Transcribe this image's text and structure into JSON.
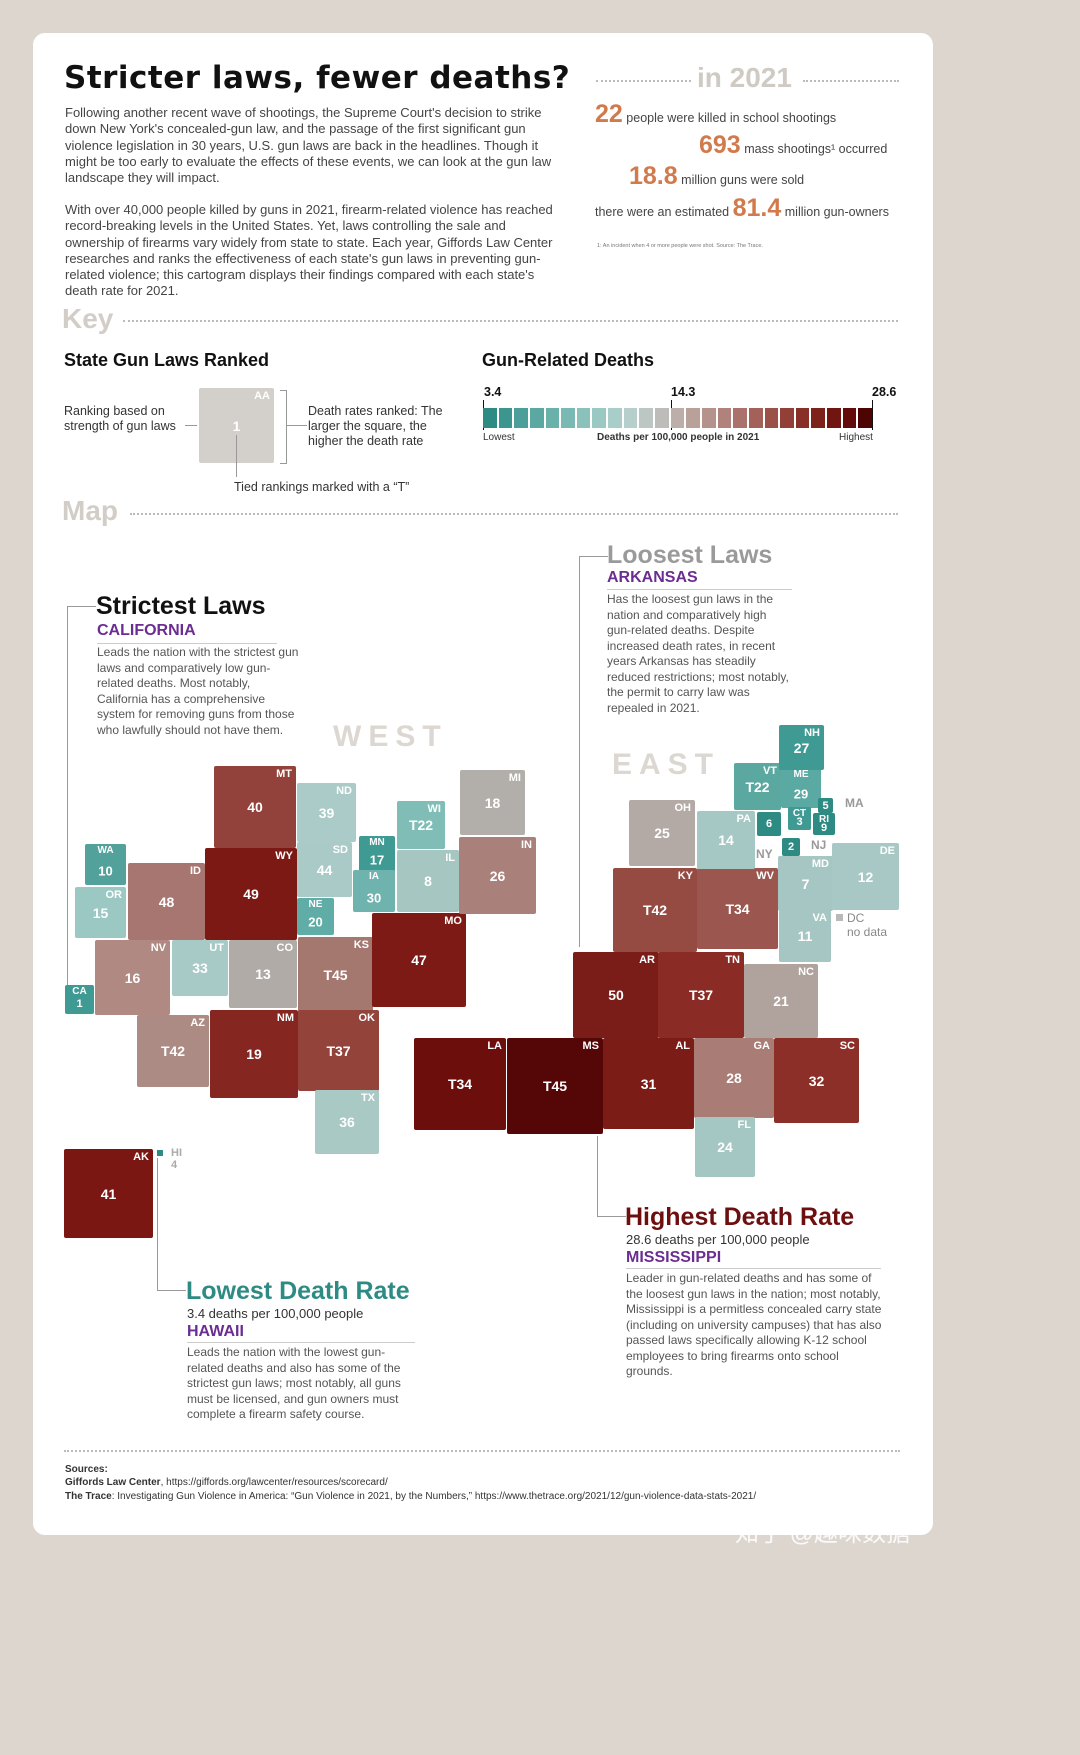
{
  "title": "Stricter laws, fewer deaths?",
  "intro_p1": "Following another recent wave of shootings, the Supreme Court's decision to strike down New York's concealed-gun law, and the passage of the first significant gun violence legislation in 30 years, U.S. gun laws are back in the headlines. Though it might be too early to evaluate the effects of these events, we can look at the gun law landscape they will impact.",
  "intro_p2": "With over 40,000 people killed by guns in 2021, firearm-related violence has reached record-breaking levels in the United States. Yet, laws controlling the sale and ownership of firearms vary widely from state to state. Each year, Giffords Law Center researches and ranks the effectiveness of each state's gun laws in preventing gun-related violence; this cartogram displays their findings compared with each state's death rate for 2021.",
  "stats": {
    "heading": "in 2021",
    "s1_num": "22",
    "s1_text": "people were killed in school shootings",
    "s2_num": "693",
    "s2_text": "mass shootings¹ occurred",
    "s3_num": "18.8",
    "s3_text": "million guns were sold",
    "s4_pre": "there were an estimated",
    "s4_num": "81.4",
    "s4_text": "million gun-owners",
    "footnote": "1: An incident when 4 or more people were shot.  Source: The Trace."
  },
  "key": {
    "section": "Key",
    "laws_title": "State Gun Laws Ranked",
    "deaths_title": "Gun-Related Deaths",
    "left_label": "Ranking based on strength of gun laws",
    "right_label": "Death rates ranked: The larger the square, the higher the death rate",
    "bottom_label": "Tied rankings marked with a “T”",
    "sample_abbr": "AA",
    "sample_rank": "1",
    "scale_min": "3.4",
    "scale_mid": "14.3",
    "scale_max": "28.6",
    "scale_low": "Lowest",
    "scale_caption": "Deaths per 100,000 people in 2021",
    "scale_high": "Highest",
    "scale_colors": [
      "#2e8b84",
      "#3c958e",
      "#4b9f98",
      "#5aa8a1",
      "#6ab1aa",
      "#7ab9b3",
      "#8ac1bb",
      "#9ac8c3",
      "#a9cdc9",
      "#b6cfcc",
      "#bcc6c3",
      "#bdbcb8",
      "#bcaea8",
      "#b9a19a",
      "#b5928b",
      "#b0827b",
      "#aa726b",
      "#a3615a",
      "#9b5048",
      "#923f37",
      "#883027",
      "#7d221a",
      "#711510",
      "#620b08",
      "#4f0404"
    ]
  },
  "map": {
    "section": "Map",
    "west": "WEST",
    "east": "EAST",
    "ma_label": "MA",
    "ny_label": "NY",
    "nj_label": "NJ",
    "dc_label": "DC",
    "dc_note": "no data",
    "hi_abbr": "HI",
    "hi_rank": "4",
    "tiles": [
      {
        "ab": "WA",
        "rk": "10",
        "c": "#52a29b"
      },
      {
        "ab": "OR",
        "rk": "15",
        "c": "#9cc8c3"
      },
      {
        "ab": "CA",
        "rk": "1",
        "c": "#3f9a93"
      },
      {
        "ab": "ID",
        "rk": "48",
        "c": "#a87670"
      },
      {
        "ab": "NV",
        "rk": "16",
        "c": "#af8982"
      },
      {
        "ab": "MT",
        "rk": "40",
        "c": "#92423a"
      },
      {
        "ab": "WY",
        "rk": "49",
        "c": "#7d1915"
      },
      {
        "ab": "UT",
        "rk": "33",
        "c": "#a8cac6"
      },
      {
        "ab": "CO",
        "rk": "13",
        "c": "#b0aba6"
      },
      {
        "ab": "AZ",
        "rk": "T42",
        "c": "#ab8b84"
      },
      {
        "ab": "NM",
        "rk": "19",
        "c": "#862620"
      },
      {
        "ab": "ND",
        "rk": "39",
        "c": "#aacbc7"
      },
      {
        "ab": "SD",
        "rk": "44",
        "c": "#a9cac6"
      },
      {
        "ab": "NE",
        "rk": "20",
        "c": "#5fada6"
      },
      {
        "ab": "KS",
        "rk": "T45",
        "c": "#a4776f"
      },
      {
        "ab": "OK",
        "rk": "T37",
        "c": "#94433b"
      },
      {
        "ab": "TX",
        "rk": "36",
        "c": "#a9c9c5"
      },
      {
        "ab": "MN",
        "rk": "17",
        "c": "#3f9a93"
      },
      {
        "ab": "IA",
        "rk": "30",
        "c": "#6eb3ad"
      },
      {
        "ab": "MO",
        "rk": "47",
        "c": "#7d1a15"
      },
      {
        "ab": "WI",
        "rk": "T22",
        "c": "#7fbdb6"
      },
      {
        "ab": "IL",
        "rk": "8",
        "c": "#a6c6c2"
      },
      {
        "ab": "MI",
        "rk": "18",
        "c": "#b2aeaa"
      },
      {
        "ab": "IN",
        "rk": "26",
        "c": "#a9807a"
      },
      {
        "ab": "LA",
        "rk": "T34",
        "c": "#6c0f0c"
      },
      {
        "ab": "MS",
        "rk": "T45",
        "c": "#550606"
      },
      {
        "ab": "AR",
        "rk": "50",
        "c": "#7a1d18"
      },
      {
        "ab": "AL",
        "rk": "31",
        "c": "#7c1c17"
      },
      {
        "ab": "TN",
        "rk": "T37",
        "c": "#8a2c25"
      },
      {
        "ab": "KY",
        "rk": "T42",
        "c": "#954a42"
      },
      {
        "ab": "OH",
        "rk": "25",
        "c": "#b3aaa5"
      },
      {
        "ab": "WV",
        "rk": "T34",
        "c": "#9a564f"
      },
      {
        "ab": "GA",
        "rk": "28",
        "c": "#a97c76"
      },
      {
        "ab": "SC",
        "rk": "32",
        "c": "#8b2f28"
      },
      {
        "ab": "FL",
        "rk": "24",
        "c": "#a5c7c3"
      },
      {
        "ab": "NC",
        "rk": "21",
        "c": "#b0a29d"
      },
      {
        "ab": "VA",
        "rk": "11",
        "c": "#a5c6c2"
      },
      {
        "ab": "PA",
        "rk": "14",
        "c": "#a6c8c4"
      },
      {
        "ab": "MD",
        "rk": "7",
        "c": "#a5c6c2"
      },
      {
        "ab": "DE",
        "rk": "12",
        "c": "#a7c8c4"
      },
      {
        "ab": "VT",
        "rk": "T22",
        "c": "#5ba8a1"
      },
      {
        "ab": "ME",
        "rk": "29",
        "c": "#5aa9a2"
      },
      {
        "ab": "NH",
        "rk": "27",
        "c": "#3f9a93"
      },
      {
        "ab": "",
        "rk": "5",
        "c": "#2e8b84"
      },
      {
        "ab": "RI",
        "rk": "9",
        "c": "#2e8b84"
      },
      {
        "ab": "CT",
        "rk": "3",
        "c": "#3f9a93"
      },
      {
        "ab": "",
        "rk": "6",
        "c": "#2e8b84"
      },
      {
        "ab": "",
        "rk": "2",
        "c": "#2e8b84"
      },
      {
        "ab": "AK",
        "rk": "41",
        "c": "#7a1712"
      }
    ]
  },
  "callouts": {
    "strict_title": "Strictest Laws",
    "strict_state": "CALIFORNIA",
    "strict_text": "Leads the nation with the strictest gun laws and comparatively low gun-related deaths. Most notably, California has a comprehensive system for removing guns from those who lawfully should not have them.",
    "loose_title": "Loosest Laws",
    "loose_state": "ARKANSAS",
    "loose_text": "Has the loosest gun laws in the nation and comparatively high gun-related deaths. Despite increased death rates, in recent years Arkansas has steadily reduced restrictions; most notably, the permit to carry law was repealed in 2021.",
    "high_title": "Highest Death Rate",
    "high_sub": "28.6 deaths per 100,000 people",
    "high_state": "MISSISSIPPI",
    "high_text": "Leader in gun-related deaths and has some of the loosest gun laws in the nation; most notably, Mississippi is a permitless concealed carry state (including on university campuses) that has also passed laws specifically allowing K-12 school employees to bring firearms onto school grounds.",
    "low_title": "Lowest Death Rate",
    "low_sub": "3.4 deaths per 100,000 people",
    "low_state": "HAWAII",
    "low_text": "Leads the nation with the lowest gun-related deaths and also has some of the strictest gun laws; most notably, all guns must be licensed, and gun owners must complete a firearm safety course."
  },
  "sources": {
    "label": "Sources:",
    "s1_name": "Giffords Law Center",
    "s1_rest": ", https://giffords.org/lawcenter/resources/scorecard/",
    "s2_name": "The Trace",
    "s2_rest": ": Investigating Gun Violence in America: “Gun Violence in 2021, by the Numbers,” https://www.thetrace.org/2021/12/gun-violence-data-stats-2021/"
  },
  "watermark": "知乎 @趣味数据"
}
